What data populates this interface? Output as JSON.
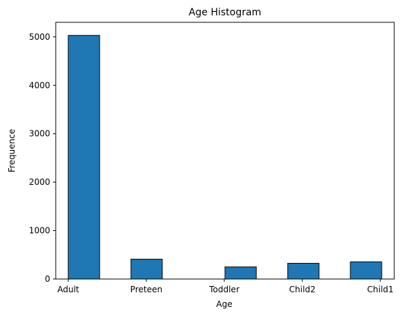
{
  "chart_data": {
    "type": "bar",
    "title": "Age Histogram",
    "xlabel": "Age",
    "ylabel": "Frequence",
    "categories": [
      "Adult",
      "Preteen",
      "Toddler",
      "Child2",
      "Child1"
    ],
    "values": [
      5030,
      410,
      250,
      325,
      355
    ],
    "ylim": [
      0,
      5300
    ],
    "yticks": [
      0,
      1000,
      2000,
      3000,
      4000,
      5000
    ],
    "grid": false,
    "bar_color": "#1f77b4",
    "edge_color": "#000000"
  }
}
